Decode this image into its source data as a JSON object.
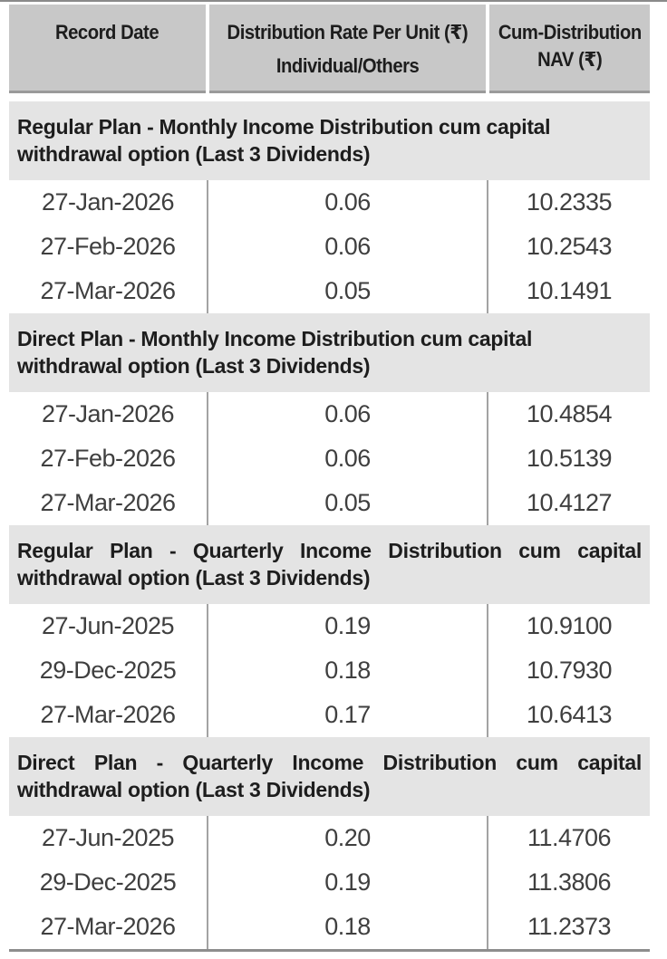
{
  "table": {
    "header": {
      "record_date": "Record Date",
      "rate_line1": "Distribution Rate Per Unit (₹)",
      "rate_line2": "Individual/Others",
      "nav_line1": "Cum-Distribution",
      "nav_line2": "NAV (₹)"
    },
    "sections": [
      {
        "title": "Regular Plan - Monthly Income Distribution cum capital withdrawal option (Last 3 Dividends)",
        "rows": [
          {
            "date": "27-Jan-2026",
            "rate": "0.06",
            "nav": "10.2335"
          },
          {
            "date": "27-Feb-2026",
            "rate": "0.06",
            "nav": "10.2543"
          },
          {
            "date": "27-Mar-2026",
            "rate": "0.05",
            "nav": "10.1491"
          }
        ]
      },
      {
        "title": "Direct Plan - Monthly Income Distribution cum capital withdrawal option (Last 3 Dividends)",
        "rows": [
          {
            "date": "27-Jan-2026",
            "rate": "0.06",
            "nav": "10.4854"
          },
          {
            "date": "27-Feb-2026",
            "rate": "0.06",
            "nav": "10.5139"
          },
          {
            "date": "27-Mar-2026",
            "rate": "0.05",
            "nav": "10.4127"
          }
        ]
      },
      {
        "title": "Regular Plan - Quarterly Income Distribution cum capital withdrawal option (Last 3 Dividends)",
        "rows": [
          {
            "date": "27-Jun-2025",
            "rate": "0.19",
            "nav": "10.9100"
          },
          {
            "date": "29-Dec-2025",
            "rate": "0.18",
            "nav": "10.7930"
          },
          {
            "date": "27-Mar-2026",
            "rate": "0.17",
            "nav": "10.6413"
          }
        ]
      },
      {
        "title": "Direct Plan - Quarterly Income Distribution cum capital withdrawal option (Last 3 Dividends)",
        "rows": [
          {
            "date": "27-Jun-2025",
            "rate": "0.20",
            "nav": "11.4706"
          },
          {
            "date": "29-Dec-2025",
            "rate": "0.19",
            "nav": "11.3806"
          },
          {
            "date": "27-Mar-2026",
            "rate": "0.18",
            "nav": "11.2373"
          }
        ]
      }
    ]
  },
  "colors": {
    "header_bg": "#c8c8c8",
    "band_bg": "#e4e4e4",
    "divider": "#a3a3a3",
    "rule": "#8a8a8a",
    "heading_text": "#1d1d1d",
    "data_text": "#3f3f3f",
    "page_bg": "#ffffff"
  }
}
